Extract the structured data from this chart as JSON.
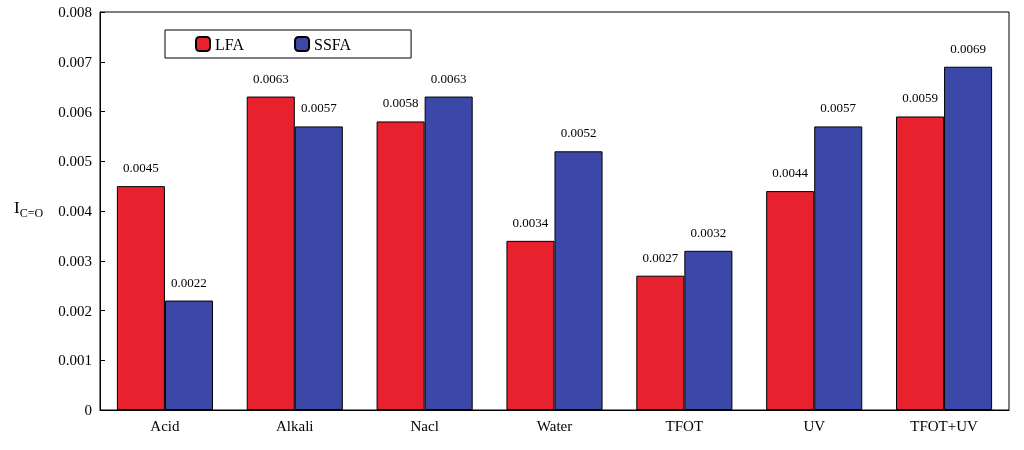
{
  "chart_data": {
    "type": "bar",
    "ylabel": "I$_{C=O}$",
    "categories": [
      "Acid",
      "Alkali",
      "Nacl",
      "Water",
      "TFOT",
      "UV",
      "TFOT+UV"
    ],
    "series": [
      {
        "name": "LFA",
        "color": "#e8212e",
        "values": [
          0.0045,
          0.0063,
          0.0058,
          0.0034,
          0.0027,
          0.0044,
          0.0059
        ]
      },
      {
        "name": "SSFA",
        "color": "#3b48a8",
        "values": [
          0.0022,
          0.0057,
          0.0063,
          0.0052,
          0.0032,
          0.0057,
          0.0069
        ]
      }
    ],
    "ylim": [
      0,
      0.008
    ],
    "yticks": [
      0,
      0.001,
      0.002,
      0.003,
      0.004,
      0.005,
      0.006,
      0.007,
      0.008
    ],
    "data_labels": true,
    "grid": false,
    "legend": "top left"
  }
}
